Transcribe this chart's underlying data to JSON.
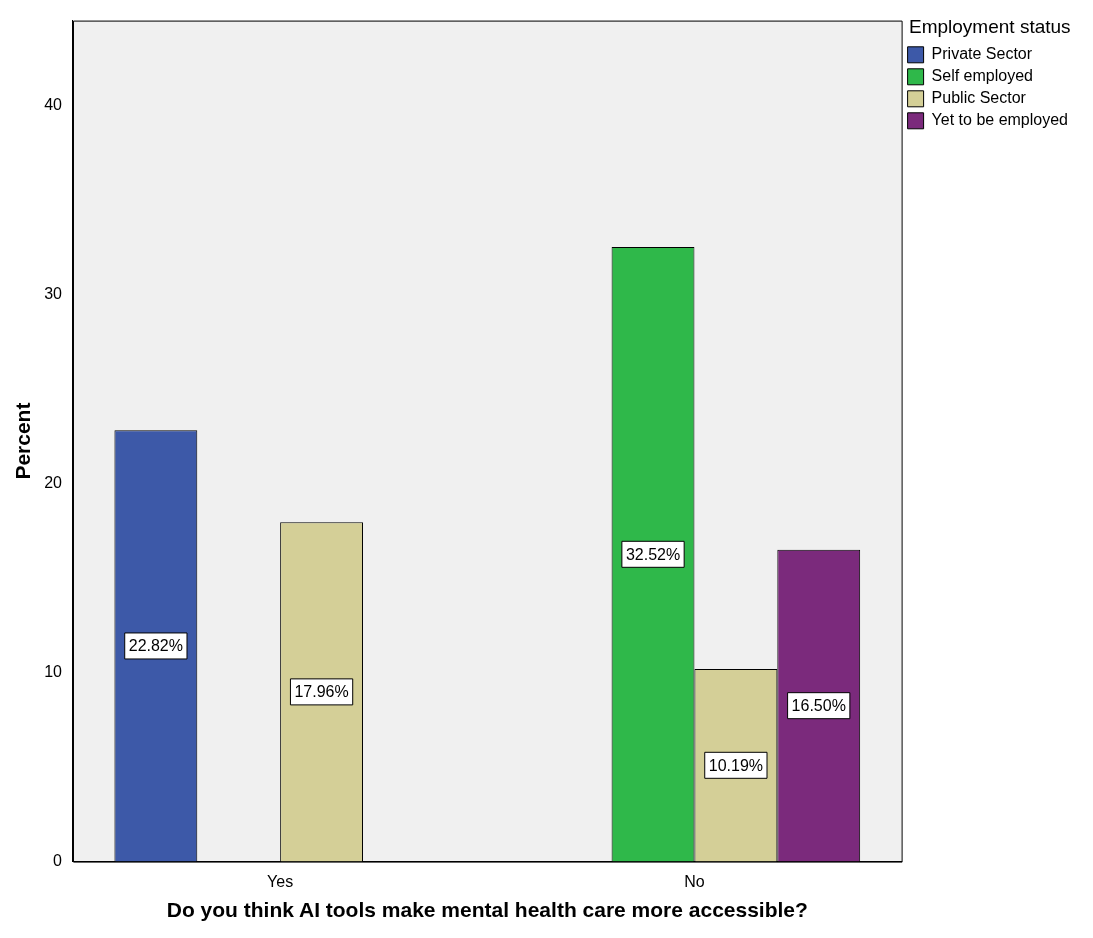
{
  "chart_data": {
    "type": "bar",
    "xlabel": "Do you think AI tools make mental health care more accessible?",
    "ylabel": "Percent",
    "legend_title": "Employment status",
    "legend": "top right",
    "grid": false,
    "categories": [
      "Yes",
      "No"
    ],
    "ylim": [
      0,
      44.5
    ],
    "yticks": [
      0,
      10,
      20,
      30,
      40
    ],
    "series": [
      {
        "name": "Private Sector",
        "color": "#3d59a8",
        "values": [
          22.82,
          null
        ],
        "value_labels": [
          "22.82%",
          null
        ]
      },
      {
        "name": "Self employed",
        "color": "#2fb84a",
        "values": [
          null,
          32.52
        ],
        "value_labels": [
          null,
          "32.52%"
        ]
      },
      {
        "name": "Public Sector",
        "color": "#d4cf97",
        "values": [
          17.96,
          10.19
        ],
        "value_labels": [
          "17.96%",
          "10.19%"
        ]
      },
      {
        "name": "Yet to be employed",
        "color": "#7b2a7c",
        "values": [
          null,
          16.5
        ],
        "value_labels": [
          null,
          "16.50%"
        ]
      }
    ]
  }
}
